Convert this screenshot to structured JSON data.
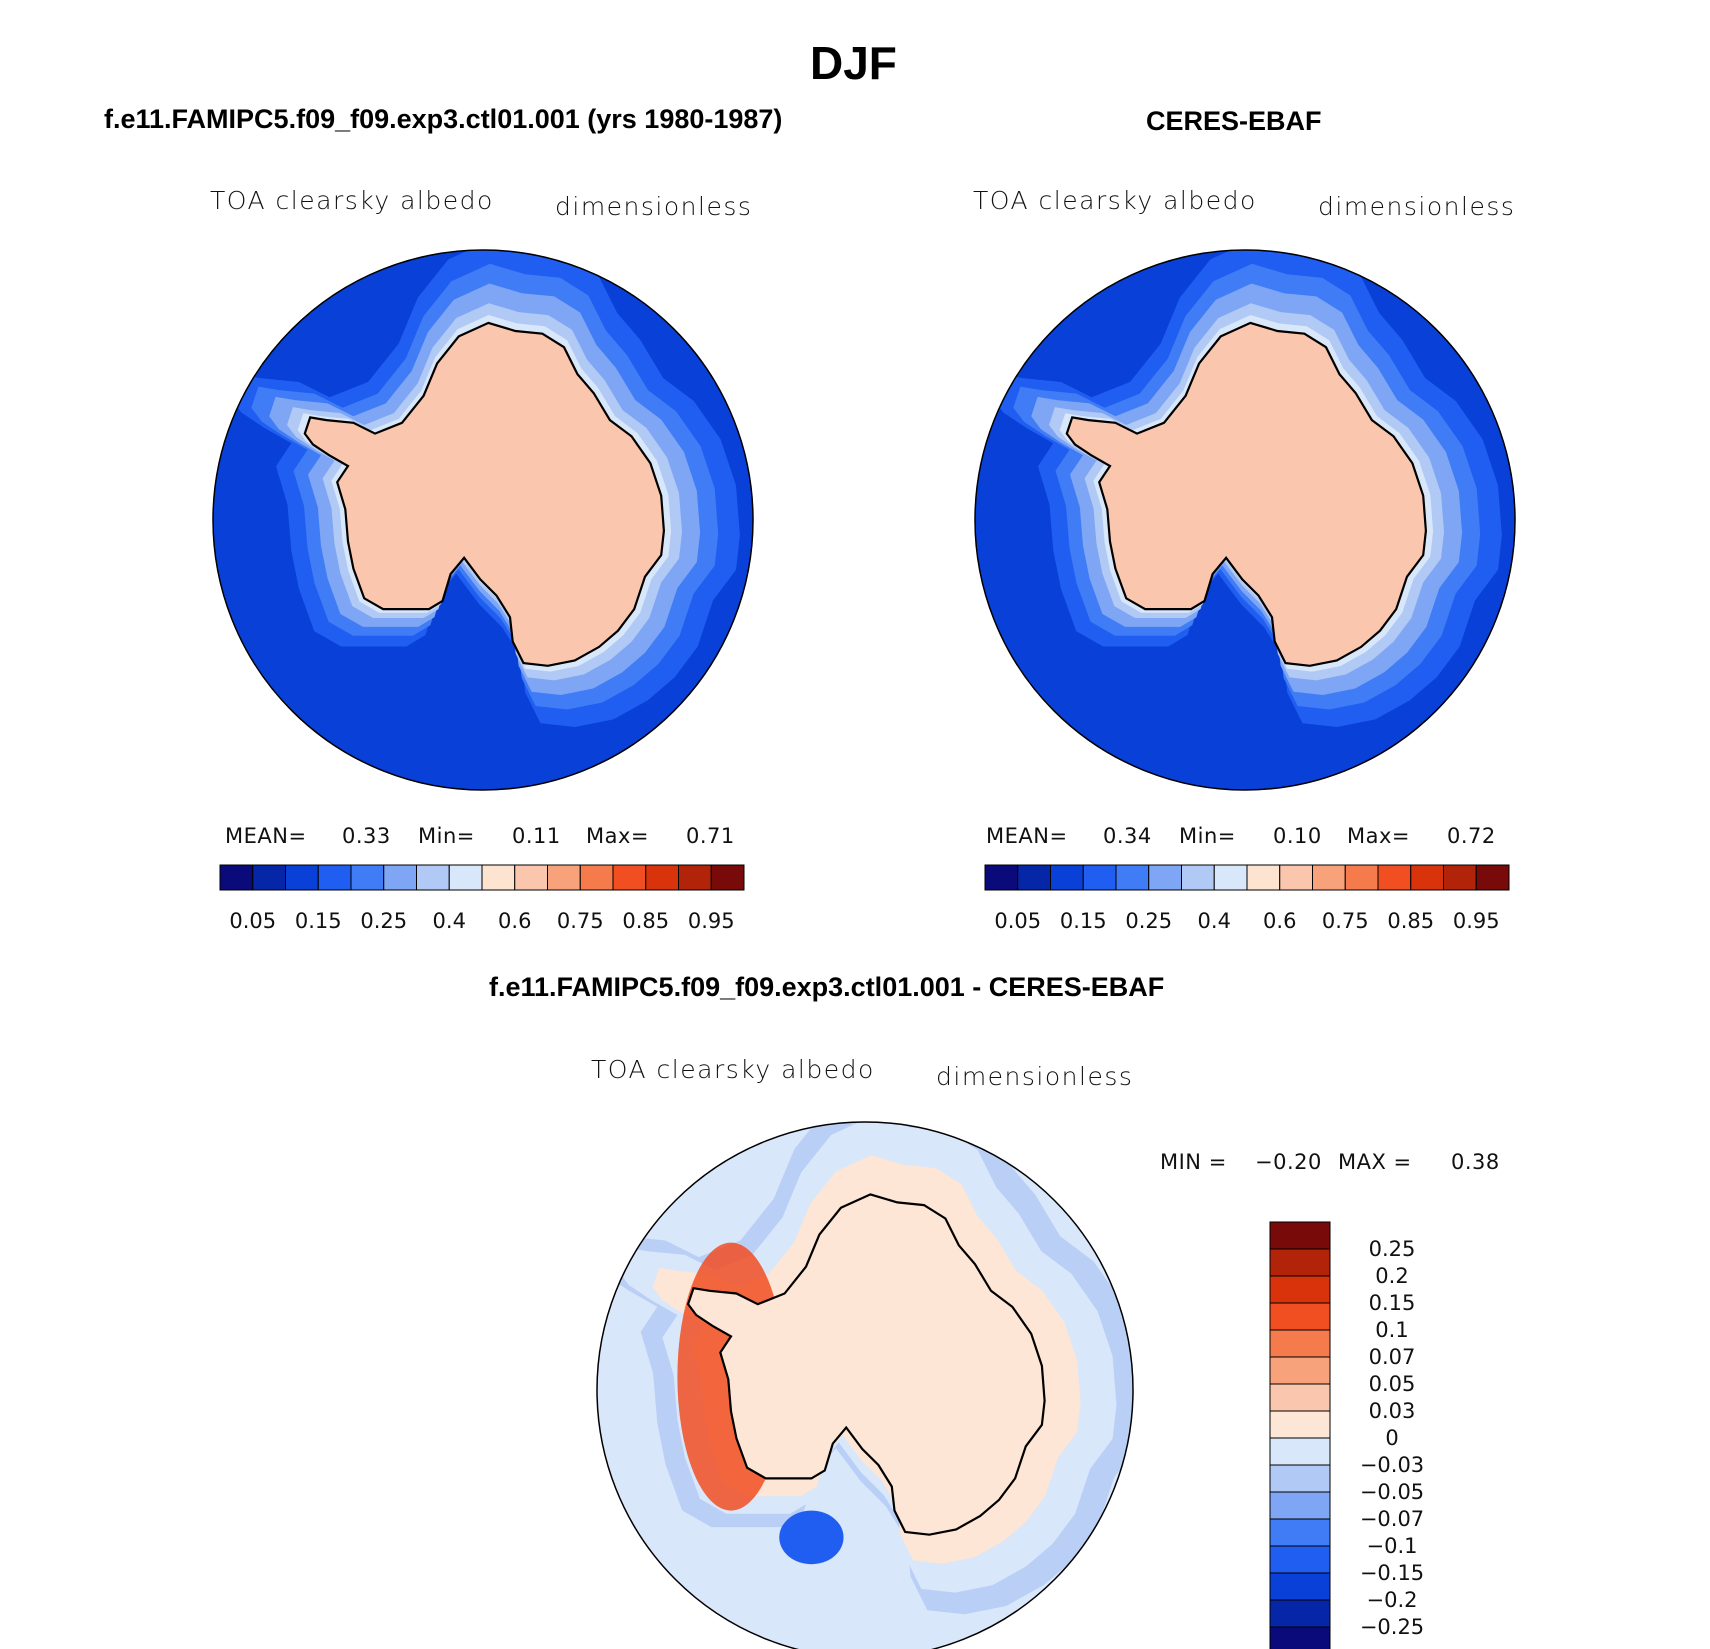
{
  "page": {
    "title": "DJF"
  },
  "colors": {
    "abs_palette": [
      "#0a0a7a",
      "#0526a6",
      "#0940d8",
      "#1f5ef0",
      "#3f7cf5",
      "#7ea6f5",
      "#b1c9f5",
      "#d9e7fa",
      "#fde4d0",
      "#fbc6ae",
      "#f7a27a",
      "#f57a4c",
      "#f14e22",
      "#d9330c",
      "#b1240a",
      "#780a0a"
    ],
    "diff_palette": [
      "#0a0a7a",
      "#0526a6",
      "#0940d8",
      "#1f5ef0",
      "#3f7cf5",
      "#7ea6f5",
      "#b1c9f5",
      "#d9e7fa",
      "#fde6d6",
      "#fbc6ae",
      "#f7a27a",
      "#f57a4c",
      "#f14e22",
      "#d9330c",
      "#b1240a",
      "#780a0a"
    ],
    "ocean_abs": "#0940d8",
    "ice_abs": "#fbc6ae",
    "coast": "#000000"
  },
  "chart_data": [
    {
      "type": "heatmap",
      "projection": "south polar stereographic",
      "title": "f.e11.FAMIPC5.f09_f09.exp3.ctl01.001 (yrs 1980-1987)",
      "variable": "TOA clearsky albedo",
      "units": "dimensionless",
      "stats": {
        "mean_label": "MEAN=",
        "mean": "0.33",
        "min_label": "Min=",
        "min": "0.11",
        "max_label": "Max=",
        "max": "0.71"
      },
      "colorbar": {
        "levels": [
          0.05,
          0.1,
          0.15,
          0.2,
          0.25,
          0.3,
          0.4,
          0.5,
          0.6,
          0.7,
          0.75,
          0.8,
          0.85,
          0.9,
          0.95
        ],
        "tick_labels": [
          "0.05",
          "0.15",
          "0.25",
          "0.4",
          "0.6",
          "0.75",
          "0.85",
          "0.95"
        ],
        "orientation": "horizontal"
      }
    },
    {
      "type": "heatmap",
      "projection": "south polar stereographic",
      "title": "CERES-EBAF",
      "variable": "TOA clearsky albedo",
      "units": "dimensionless",
      "stats": {
        "mean_label": "MEAN=",
        "mean": "0.34",
        "min_label": "Min=",
        "min": "0.10",
        "max_label": "Max=",
        "max": "0.72"
      },
      "colorbar": {
        "levels": [
          0.05,
          0.1,
          0.15,
          0.2,
          0.25,
          0.3,
          0.4,
          0.5,
          0.6,
          0.7,
          0.75,
          0.8,
          0.85,
          0.9,
          0.95
        ],
        "tick_labels": [
          "0.05",
          "0.15",
          "0.25",
          "0.4",
          "0.6",
          "0.75",
          "0.85",
          "0.95"
        ],
        "orientation": "horizontal"
      }
    },
    {
      "type": "heatmap",
      "projection": "south polar stereographic",
      "title": "f.e11.FAMIPC5.f09_f09.exp3.ctl01.001 - CERES-EBAF",
      "variable": "TOA clearsky albedo",
      "units": "dimensionless",
      "stats": {
        "min_label": "MIN =",
        "min": "−0.20",
        "max_label": "MAX =",
        "max": "0.38"
      },
      "colorbar": {
        "levels": [
          -0.25,
          -0.2,
          -0.15,
          -0.1,
          -0.07,
          -0.05,
          -0.03,
          0,
          0.03,
          0.05,
          0.07,
          0.1,
          0.15,
          0.2,
          0.25
        ],
        "tick_labels": [
          "0.25",
          "0.2",
          "0.15",
          "0.1",
          "0.07",
          "0.05",
          "0.03",
          "0",
          "−0.03",
          "−0.05",
          "−0.07",
          "−0.1",
          "−0.15",
          "−0.2",
          "−0.25"
        ],
        "orientation": "vertical"
      }
    }
  ]
}
